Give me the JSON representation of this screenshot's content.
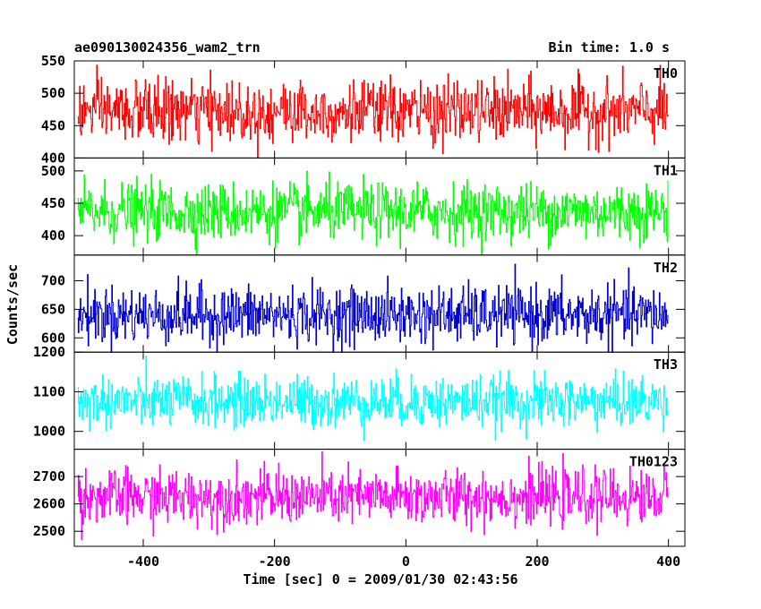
{
  "header": {
    "title_left": "ae090130024356_wam2_trn",
    "title_right": "Bin time: 1.0 s"
  },
  "chart_data": {
    "type": "line",
    "title": "ae090130024356_wam2_trn",
    "bin_time_label": "Bin time: 1.0 s",
    "xlabel": "Time [sec] 0 = 2009/01/30 02:43:56",
    "ylabel": "Counts/sec",
    "xlim": [
      -505,
      425
    ],
    "xticks": [
      -400,
      -200,
      0,
      200,
      400
    ],
    "data_x_range": [
      -500,
      400
    ],
    "sample_interval": 1.0,
    "panels": [
      {
        "name": "TH0",
        "color": "#ff0000",
        "ylim": [
          400,
          550
        ],
        "yticks": [
          400,
          450,
          500,
          550
        ],
        "mean": 472,
        "std": 24
      },
      {
        "name": "TH1",
        "color": "#00ff00",
        "ylim": [
          370,
          520
        ],
        "yticks": [
          400,
          450,
          500
        ],
        "mean": 437,
        "std": 22
      },
      {
        "name": "TH2",
        "color": "#0000cc",
        "ylim": [
          575,
          745
        ],
        "yticks": [
          600,
          650,
          700
        ],
        "mean": 640,
        "std": 25
      },
      {
        "name": "TH3",
        "color": "#00ffff",
        "ylim": [
          955,
          1200
        ],
        "yticks": [
          1000,
          1100,
          1200
        ],
        "mean": 1075,
        "std": 32
      },
      {
        "name": "TH0123",
        "color": "#ff00ff",
        "ylim": [
          2445,
          2800
        ],
        "yticks": [
          2500,
          2600,
          2700
        ],
        "mean": 2625,
        "std": 50
      }
    ]
  }
}
